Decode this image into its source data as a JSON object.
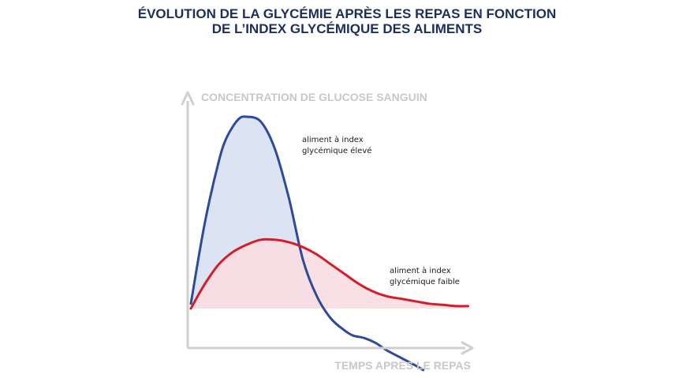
{
  "title": {
    "line1": "ÉVOLUTION DE LA GLYCÉMIE APRÈS LES REPAS EN FONCTION",
    "line2": "DE L’INDEX GLYCÉMIQUE DES ALIMENTS"
  },
  "colors": {
    "high_line": "#2e4a9a",
    "high_fill": "#dce3f2",
    "low_line": "#d41d2b",
    "low_fill": "#fadde2",
    "axis": "#cfcfcf",
    "title": "#1b2f5b"
  },
  "chart_data": {
    "type": "area",
    "ylabel": "CONCENTRATION DE GLUCOSE SANGUIN",
    "xlabel": "TEMPS APRÈS LE REPAS",
    "xlim": [
      0,
      100
    ],
    "ylim": [
      0,
      100
    ],
    "baseline": 20,
    "grid": false,
    "series": [
      {
        "name": "aliment à index glycémique élevé",
        "label_lines": [
          "aliment à index",
          "glycémique élevé"
        ],
        "color": "#2e4a9a",
        "x": [
          0,
          5,
          10,
          13,
          17,
          20,
          25,
          30,
          35,
          40,
          45,
          50,
          55,
          58,
          62,
          66,
          70,
          75,
          80,
          83
        ],
        "y": [
          22,
          55,
          80,
          90,
          97,
          98,
          96,
          85,
          65,
          40,
          25,
          16,
          11,
          9,
          8,
          6,
          3,
          0,
          -3,
          -5
        ]
      },
      {
        "name": "aliment à index glycémique faible",
        "label_lines": [
          "aliment à index",
          "glycémique faible"
        ],
        "color": "#d41d2b",
        "x": [
          0,
          5,
          10,
          15,
          20,
          25,
          30,
          35,
          40,
          45,
          50,
          55,
          60,
          65,
          70,
          75,
          80,
          85,
          90,
          95,
          99
        ],
        "y": [
          20,
          30,
          38,
          43,
          46,
          48,
          48,
          47,
          45,
          42,
          38,
          34,
          30,
          27,
          25,
          24,
          23,
          22,
          21.5,
          21,
          21
        ]
      }
    ]
  }
}
